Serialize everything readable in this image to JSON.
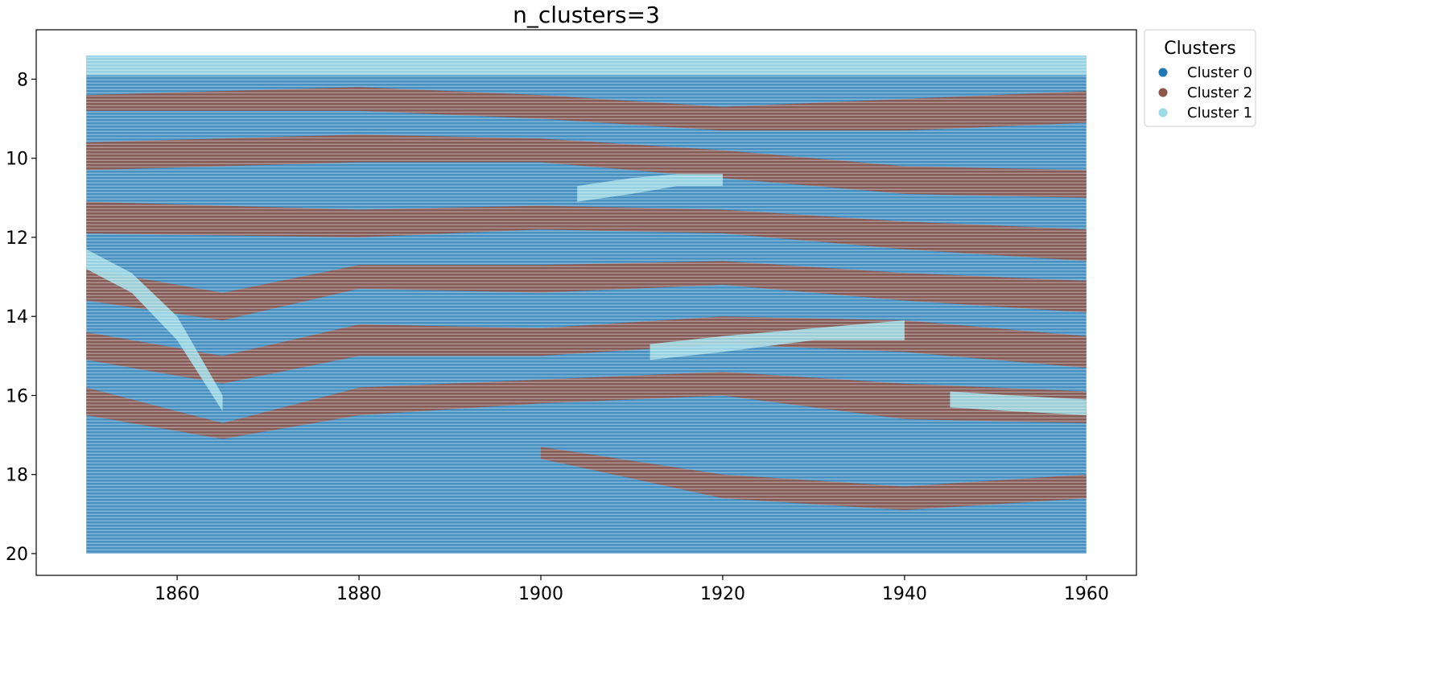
{
  "chart_data": {
    "type": "scatter",
    "title": "n_clusters=3",
    "xlabel": "",
    "ylabel": "",
    "xlim": [
      1844.5,
      1965.5
    ],
    "ylim": [
      20.55,
      6.75
    ],
    "y_inverted": true,
    "grid": false,
    "x_ticks": [
      1860,
      1880,
      1900,
      1920,
      1940,
      1960
    ],
    "y_ticks": [
      8,
      10,
      12,
      14,
      16,
      18,
      20
    ],
    "x_range": [
      1850,
      1960
    ],
    "y_range": [
      7.4,
      20.0
    ],
    "legend": {
      "title": "Clusters",
      "placement": "outside upper right",
      "entries": [
        {
          "name": "Cluster 0",
          "color": "#1f77b4"
        },
        {
          "name": "Cluster 2",
          "color": "#8c564b"
        },
        {
          "name": "Cluster 1",
          "color": "#9edae5"
        }
      ]
    },
    "series": [
      {
        "name": "Cluster 0",
        "color": "#1f77b4",
        "role": "background points (most of the grid)"
      },
      {
        "name": "Cluster 2",
        "color": "#8c564b",
        "bands": [
          {
            "x": [
              1850,
              1880,
              1900,
              1920,
              1940,
              1960
            ],
            "y_low": [
              8.4,
              8.2,
              8.4,
              8.7,
              8.5,
              8.3
            ],
            "y_high": [
              8.8,
              8.8,
              9.0,
              9.3,
              9.3,
              9.1
            ]
          },
          {
            "x": [
              1850,
              1880,
              1900,
              1920,
              1940,
              1960
            ],
            "y_low": [
              9.6,
              9.4,
              9.5,
              9.8,
              10.2,
              10.3
            ],
            "y_high": [
              10.3,
              10.1,
              10.1,
              10.5,
              10.9,
              11.0
            ]
          },
          {
            "x": [
              1850,
              1880,
              1900,
              1920,
              1940,
              1960
            ],
            "y_low": [
              11.1,
              11.3,
              11.2,
              11.3,
              11.6,
              11.8
            ],
            "y_high": [
              11.9,
              12.0,
              11.8,
              11.9,
              12.3,
              12.6
            ]
          },
          {
            "x": [
              1850,
              1865,
              1880,
              1900,
              1920,
              1940,
              1960
            ],
            "y_low": [
              12.8,
              13.4,
              12.7,
              12.7,
              12.6,
              12.9,
              13.1
            ],
            "y_high": [
              13.6,
              14.1,
              13.3,
              13.4,
              13.2,
              13.6,
              13.9
            ]
          },
          {
            "x": [
              1850,
              1865,
              1880,
              1900,
              1920,
              1940,
              1960
            ],
            "y_low": [
              14.4,
              15.0,
              14.2,
              14.3,
              14.0,
              14.1,
              14.5
            ],
            "y_high": [
              15.1,
              15.7,
              15.0,
              15.0,
              14.7,
              14.9,
              15.3
            ]
          },
          {
            "x": [
              1850,
              1865,
              1880,
              1900,
              1920,
              1940,
              1960
            ],
            "y_low": [
              15.8,
              16.7,
              15.8,
              15.6,
              15.4,
              15.7,
              15.9
            ],
            "y_high": [
              16.5,
              17.1,
              16.5,
              16.2,
              16.0,
              16.6,
              16.7
            ]
          },
          {
            "x": [
              1900,
              1920,
              1940,
              1960
            ],
            "y_low": [
              17.3,
              18.0,
              18.3,
              18.0
            ],
            "y_high": [
              17.6,
              18.6,
              18.9,
              18.6
            ]
          }
        ]
      },
      {
        "name": "Cluster 1",
        "color": "#9edae5",
        "bands": [
          {
            "x": [
              1850,
              1960
            ],
            "y_low": [
              7.4,
              7.4
            ],
            "y_high": [
              7.9,
              7.9
            ]
          },
          {
            "x": [
              1850,
              1855,
              1860,
              1865
            ],
            "y_low": [
              12.3,
              12.9,
              14.0,
              16.0
            ],
            "y_high": [
              12.8,
              13.4,
              14.6,
              16.4
            ]
          },
          {
            "x": [
              1904,
              1910,
              1915,
              1920
            ],
            "y_low": [
              10.7,
              10.5,
              10.4,
              10.4
            ],
            "y_high": [
              11.1,
              10.9,
              10.7,
              10.7
            ]
          },
          {
            "x": [
              1912,
              1920,
              1930,
              1940
            ],
            "y_low": [
              14.7,
              14.5,
              14.3,
              14.1
            ],
            "y_high": [
              15.1,
              14.9,
              14.6,
              14.6
            ]
          },
          {
            "x": [
              1945,
              1952,
              1960
            ],
            "y_low": [
              15.9,
              16.0,
              16.1
            ],
            "y_high": [
              16.3,
              16.4,
              16.5
            ]
          }
        ]
      }
    ]
  }
}
